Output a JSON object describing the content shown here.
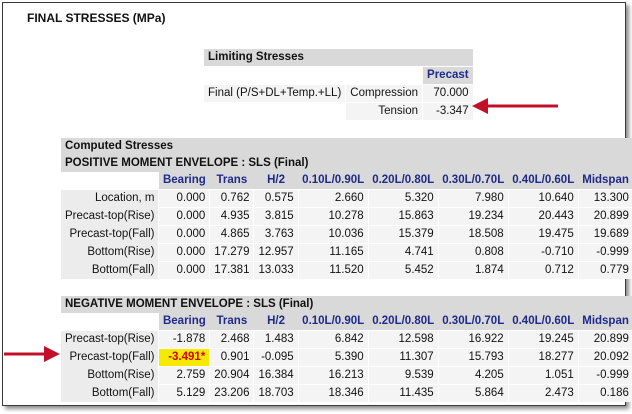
{
  "title": "FINAL STRESSES (MPa)",
  "limiting": {
    "header": "Limiting Stresses",
    "col": "Precast",
    "row_label": "Final (P/S+DL+Temp.+LL)",
    "compression_label": "Compression",
    "compression_value": "70.000",
    "tension_label": "Tension",
    "tension_value": "-3.347"
  },
  "computed": {
    "header": "Computed Stresses",
    "columns": [
      "Bearing",
      "Trans",
      "H/2",
      "0.10L/0.90L",
      "0.20L/0.80L",
      "0.30L/0.70L",
      "0.40L/0.60L",
      "Midspan"
    ],
    "positive": {
      "title": "POSITIVE MOMENT ENVELOPE : SLS (Final)",
      "rows": [
        {
          "label": "Location, m",
          "values": [
            "0.000",
            "0.762",
            "0.575",
            "2.660",
            "5.320",
            "7.980",
            "10.640",
            "13.300"
          ]
        },
        {
          "label": "Precast-top(Rise)",
          "values": [
            "0.000",
            "4.935",
            "3.815",
            "10.278",
            "15.863",
            "19.234",
            "20.443",
            "20.899"
          ]
        },
        {
          "label": "Precast-top(Fall)",
          "values": [
            "0.000",
            "4.865",
            "3.763",
            "10.036",
            "15.379",
            "18.508",
            "19.475",
            "19.689"
          ]
        },
        {
          "label": "Bottom(Rise)",
          "values": [
            "0.000",
            "17.279",
            "12.957",
            "11.165",
            "4.741",
            "0.808",
            "-0.710",
            "-0.999"
          ]
        },
        {
          "label": "Bottom(Fall)",
          "values": [
            "0.000",
            "17.381",
            "13.033",
            "11.520",
            "5.452",
            "1.874",
            "0.712",
            "0.779"
          ]
        }
      ]
    },
    "negative": {
      "title": "NEGATIVE MOMENT ENVELOPE : SLS (Final)",
      "rows": [
        {
          "label": "Precast-top(Rise)",
          "values": [
            "-1.878",
            "2.468",
            "1.483",
            "6.842",
            "12.598",
            "16.922",
            "19.245",
            "20.899"
          ]
        },
        {
          "label": "Precast-top(Fall)",
          "values": [
            "-3.491*",
            "0.901",
            "-0.095",
            "5.390",
            "11.307",
            "15.793",
            "18.277",
            "20.092"
          ]
        },
        {
          "label": "Bottom(Rise)",
          "values": [
            "2.759",
            "20.904",
            "16.384",
            "16.213",
            "9.539",
            "4.205",
            "1.051",
            "-0.999"
          ]
        },
        {
          "label": "Bottom(Fall)",
          "values": [
            "5.129",
            "23.206",
            "18.703",
            "18.346",
            "11.435",
            "5.864",
            "2.473",
            "0.186"
          ]
        }
      ]
    }
  },
  "colors": {
    "header_text": "#1f2a8a",
    "arrow": "#c0102a",
    "highlight_bg": "#f7ea00",
    "highlight_text": "#d40000"
  }
}
